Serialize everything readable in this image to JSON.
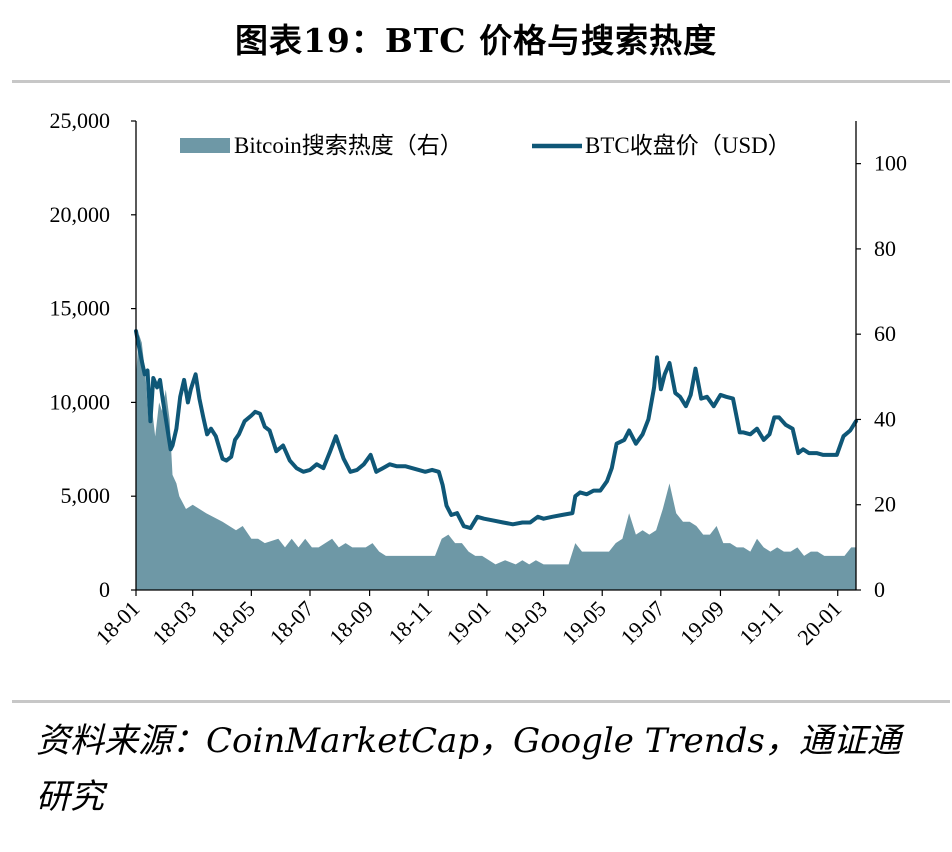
{
  "title": "图表19：BTC 价格与搜索热度",
  "source": "资料来源：CoinMarketCap，Google Trends，通证通研究",
  "colors": {
    "area": "#6e98a6",
    "line": "#0f5777",
    "rule": "#c7c7c7"
  },
  "chart_data": {
    "type": "line",
    "title": "",
    "xlabel": "",
    "ylabel_left": "",
    "ylabel_right": "",
    "grid": false,
    "legend_position": "top",
    "x_range": [
      "2018-01-01",
      "2020-01-20"
    ],
    "x_ticks": [
      "18-01",
      "18-03",
      "18-05",
      "18-07",
      "18-09",
      "18-11",
      "19-01",
      "19-03",
      "19-05",
      "19-07",
      "19-09",
      "19-11",
      "20-01"
    ],
    "y_left": {
      "range": [
        0,
        25000
      ],
      "ticks": [
        0,
        5000,
        10000,
        15000,
        20000,
        25000
      ],
      "tick_labels": [
        "0",
        "5,000",
        "10,000",
        "15,000",
        "20,000",
        "25,000"
      ]
    },
    "y_right": {
      "range": [
        0,
        110
      ],
      "ticks": [
        0,
        20,
        40,
        60,
        80,
        100
      ],
      "tick_labels": [
        "0",
        "20",
        "40",
        "60",
        "80",
        "100"
      ]
    },
    "series": [
      {
        "name": "Bitcoin搜索热度（右）",
        "type": "area",
        "axis": "right",
        "x": [
          "2018-01-01",
          "2018-01-04",
          "2018-01-07",
          "2018-01-11",
          "2018-01-14",
          "2018-01-18",
          "2018-01-21",
          "2018-01-25",
          "2018-01-28",
          "2018-02-01",
          "2018-02-05",
          "2018-02-08",
          "2018-02-12",
          "2018-02-15",
          "2018-02-22",
          "2018-03-01",
          "2018-03-15",
          "2018-04-01",
          "2018-04-15",
          "2018-04-22",
          "2018-05-01",
          "2018-05-08",
          "2018-05-15",
          "2018-05-29",
          "2018-06-05",
          "2018-06-12",
          "2018-06-19",
          "2018-06-26",
          "2018-07-03",
          "2018-07-10",
          "2018-07-24",
          "2018-07-31",
          "2018-08-07",
          "2018-08-14",
          "2018-08-28",
          "2018-09-04",
          "2018-09-11",
          "2018-09-18",
          "2018-10-15",
          "2018-11-08",
          "2018-11-15",
          "2018-11-22",
          "2018-11-29",
          "2018-12-06",
          "2018-12-13",
          "2018-12-20",
          "2018-12-27",
          "2019-01-10",
          "2019-01-20",
          "2019-01-31",
          "2019-02-07",
          "2019-02-14",
          "2019-02-21",
          "2019-03-01",
          "2019-03-10",
          "2019-03-20",
          "2019-03-27",
          "2019-04-03",
          "2019-04-10",
          "2019-04-17",
          "2019-04-24",
          "2019-05-01",
          "2019-05-08",
          "2019-05-15",
          "2019-05-22",
          "2019-05-29",
          "2019-06-05",
          "2019-06-12",
          "2019-06-19",
          "2019-06-26",
          "2019-07-03",
          "2019-07-10",
          "2019-07-17",
          "2019-07-24",
          "2019-07-31",
          "2019-08-07",
          "2019-08-14",
          "2019-08-21",
          "2019-08-28",
          "2019-09-04",
          "2019-09-11",
          "2019-09-18",
          "2019-09-25",
          "2019-10-02",
          "2019-10-09",
          "2019-10-16",
          "2019-10-23",
          "2019-10-30",
          "2019-11-06",
          "2019-11-13",
          "2019-11-20",
          "2019-11-27",
          "2019-12-04",
          "2019-12-11",
          "2019-12-18",
          "2019-12-25",
          "2020-01-01",
          "2020-01-08",
          "2020-01-15",
          "2020-01-20"
        ],
        "values": [
          50,
          60,
          58,
          50,
          40,
          42,
          36,
          44,
          42,
          47,
          40,
          27,
          25,
          22,
          19,
          20,
          18,
          16,
          14,
          15,
          12,
          12,
          11,
          12,
          10,
          12,
          10,
          12,
          10,
          10,
          12,
          10,
          11,
          10,
          10,
          11,
          9,
          8,
          8,
          8,
          12,
          13,
          11,
          11,
          9,
          8,
          8,
          6,
          7,
          6,
          7,
          6,
          7,
          6,
          6,
          6,
          6,
          11,
          9,
          9,
          9,
          9,
          9,
          11,
          12,
          18,
          13,
          14,
          13,
          14,
          19,
          25,
          18,
          16,
          16,
          15,
          13,
          13,
          15,
          11,
          11,
          10,
          10,
          9,
          12,
          10,
          9,
          10,
          9,
          9,
          10,
          8,
          9,
          9,
          8,
          8,
          8,
          8,
          10,
          10
        ]
      },
      {
        "name": "BTC收盘价（USD）",
        "type": "line",
        "axis": "left",
        "x": [
          "2018-01-01",
          "2018-01-04",
          "2018-01-07",
          "2018-01-10",
          "2018-01-13",
          "2018-01-16",
          "2018-01-19",
          "2018-01-23",
          "2018-01-26",
          "2018-01-29",
          "2018-02-02",
          "2018-02-06",
          "2018-02-08",
          "2018-02-12",
          "2018-02-16",
          "2018-02-20",
          "2018-02-24",
          "2018-02-27",
          "2018-03-04",
          "2018-03-08",
          "2018-03-12",
          "2018-03-16",
          "2018-03-20",
          "2018-03-25",
          "2018-04-01",
          "2018-04-05",
          "2018-04-10",
          "2018-04-14",
          "2018-04-18",
          "2018-04-24",
          "2018-05-01",
          "2018-05-05",
          "2018-05-10",
          "2018-05-15",
          "2018-05-20",
          "2018-05-27",
          "2018-06-03",
          "2018-06-10",
          "2018-06-17",
          "2018-06-24",
          "2018-07-01",
          "2018-07-08",
          "2018-07-15",
          "2018-07-22",
          "2018-07-28",
          "2018-08-05",
          "2018-08-12",
          "2018-08-19",
          "2018-08-26",
          "2018-09-02",
          "2018-09-08",
          "2018-09-15",
          "2018-09-22",
          "2018-09-29",
          "2018-10-08",
          "2018-10-15",
          "2018-10-22",
          "2018-10-29",
          "2018-11-05",
          "2018-11-12",
          "2018-11-16",
          "2018-11-20",
          "2018-11-25",
          "2018-12-01",
          "2018-12-08",
          "2018-12-15",
          "2018-12-22",
          "2018-12-29",
          "2019-01-08",
          "2019-01-18",
          "2019-01-28",
          "2019-02-07",
          "2019-02-15",
          "2019-02-23",
          "2019-03-01",
          "2019-03-10",
          "2019-03-20",
          "2019-03-31",
          "2019-04-03",
          "2019-04-08",
          "2019-04-15",
          "2019-04-22",
          "2019-04-29",
          "2019-05-06",
          "2019-05-11",
          "2019-05-16",
          "2019-05-24",
          "2019-05-29",
          "2019-06-05",
          "2019-06-12",
          "2019-06-18",
          "2019-06-24",
          "2019-06-27",
          "2019-07-01",
          "2019-07-05",
          "2019-07-10",
          "2019-07-16",
          "2019-07-21",
          "2019-07-27",
          "2019-08-01",
          "2019-08-06",
          "2019-08-12",
          "2019-08-18",
          "2019-08-25",
          "2019-09-01",
          "2019-09-07",
          "2019-09-14",
          "2019-09-21",
          "2019-09-25",
          "2019-10-02",
          "2019-10-09",
          "2019-10-16",
          "2019-10-22",
          "2019-10-27",
          "2019-11-01",
          "2019-11-08",
          "2019-11-15",
          "2019-11-21",
          "2019-11-26",
          "2019-12-02",
          "2019-12-10",
          "2019-12-17",
          "2019-12-24",
          "2019-12-31",
          "2020-01-07",
          "2020-01-14",
          "2020-01-20"
        ],
        "values": [
          13800,
          13000,
          12200,
          11500,
          11700,
          9000,
          11300,
          10800,
          11200,
          10100,
          8800,
          7500,
          7700,
          8600,
          10300,
          11200,
          10000,
          10700,
          11500,
          10200,
          9200,
          8300,
          8600,
          8200,
          7000,
          6900,
          7100,
          8000,
          8300,
          9000,
          9300,
          9500,
          9400,
          8700,
          8500,
          7400,
          7700,
          6900,
          6500,
          6300,
          6400,
          6700,
          6500,
          7400,
          8200,
          7000,
          6300,
          6400,
          6700,
          7200,
          6300,
          6500,
          6700,
          6600,
          6600,
          6500,
          6400,
          6300,
          6400,
          6300,
          5600,
          4500,
          4000,
          4100,
          3400,
          3300,
          3900,
          3800,
          3700,
          3600,
          3500,
          3600,
          3600,
          3900,
          3800,
          3900,
          4000,
          4100,
          5000,
          5200,
          5100,
          5300,
          5300,
          5800,
          6500,
          7800,
          8000,
          8500,
          7800,
          8300,
          9100,
          10800,
          12400,
          10700,
          11500,
          12100,
          10500,
          10300,
          9800,
          10400,
          11800,
          10200,
          10300,
          9800,
          10400,
          10300,
          10200,
          8400,
          8400,
          8300,
          8600,
          8000,
          8300,
          9200,
          9200,
          8800,
          8600,
          7300,
          7500,
          7300,
          7300,
          7200,
          7200,
          7200,
          8200,
          8500,
          9000
        ]
      }
    ]
  }
}
